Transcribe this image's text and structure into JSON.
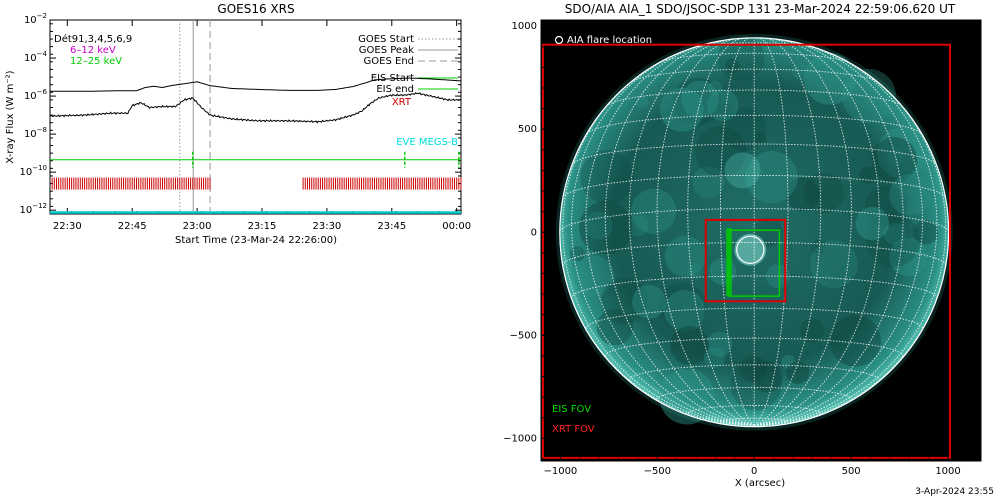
{
  "chart_data": [
    {
      "type": "line",
      "title": "GOES16 XRS",
      "xlabel": "Start Time (23-Mar-24 22:26:00)",
      "ylabel": "X-ray Flux (W m⁻²)",
      "x_tick_labels": [
        "22:30",
        "22:45",
        "23:00",
        "23:15",
        "23:30",
        "23:45",
        "00:00"
      ],
      "x_tick_minutes": [
        4,
        19,
        34,
        49,
        64,
        79,
        94
      ],
      "xlim_minutes": [
        0,
        95
      ],
      "y_tick_exponents": [
        -2,
        -4,
        -6,
        -8,
        -10,
        -12
      ],
      "ylim_log10": [
        -12.2,
        -2
      ],
      "y_scale": "log",
      "legend_top_left": [
        "Dét91,3,4,5,6,9",
        "6–12 keV",
        "12–25 keV"
      ],
      "legend_top_left_colors": [
        "#000000",
        "#cc00cc",
        "#00cc00"
      ],
      "legend_right": [
        {
          "label": "GOES Start",
          "style": "dotted",
          "color": "#999999"
        },
        {
          "label": "GOES Peak",
          "style": "solid",
          "color": "#999999"
        },
        {
          "label": "GOES End",
          "style": "dashed",
          "color": "#999999"
        },
        {
          "label": "EIS Start",
          "style": "solid",
          "color": "#00cc00"
        },
        {
          "label": "EIS end",
          "style": "solid",
          "color": "#00cc00"
        },
        {
          "label": "XRT",
          "style": "text",
          "color": "#cc0000"
        }
      ],
      "eve_label": "EVE MEGS-B",
      "goes_start_minute": 30,
      "goes_peak_minute": 33.1,
      "goes_end_minute": 37,
      "series": [
        {
          "name": "GOES long channel",
          "color": "#000000",
          "points": [
            [
              0,
              -5.75
            ],
            [
              8,
              -5.75
            ],
            [
              16,
              -5.72
            ],
            [
              20,
              -5.72
            ],
            [
              22,
              -5.55
            ],
            [
              24,
              -5.48
            ],
            [
              26,
              -5.55
            ],
            [
              28,
              -5.45
            ],
            [
              31,
              -5.35
            ],
            [
              34,
              -5.25
            ],
            [
              37,
              -5.45
            ],
            [
              42,
              -5.6
            ],
            [
              48,
              -5.65
            ],
            [
              55,
              -5.7
            ],
            [
              62,
              -5.7
            ],
            [
              66,
              -5.65
            ],
            [
              70,
              -5.5
            ],
            [
              73,
              -5.3
            ],
            [
              75,
              -5.15
            ],
            [
              78,
              -5.1
            ],
            [
              83,
              -5.05
            ],
            [
              88,
              -5.1
            ],
            [
              95,
              -5.2
            ]
          ]
        },
        {
          "name": "GOES short channel",
          "color": "#000000",
          "points": [
            [
              0,
              -7.05
            ],
            [
              8,
              -7.0
            ],
            [
              14,
              -6.9
            ],
            [
              18,
              -6.9
            ],
            [
              19,
              -6.5
            ],
            [
              21,
              -6.35
            ],
            [
              23,
              -6.6
            ],
            [
              26,
              -6.55
            ],
            [
              29,
              -6.55
            ],
            [
              31,
              -6.2
            ],
            [
              33,
              -6.1
            ],
            [
              35,
              -6.6
            ],
            [
              37,
              -7.0
            ],
            [
              42,
              -7.2
            ],
            [
              48,
              -7.3
            ],
            [
              55,
              -7.3
            ],
            [
              62,
              -7.35
            ],
            [
              66,
              -7.25
            ],
            [
              70,
              -7.0
            ],
            [
              72,
              -6.8
            ],
            [
              74,
              -6.4
            ],
            [
              76,
              -6.1
            ],
            [
              79,
              -5.95
            ],
            [
              82,
              -5.95
            ],
            [
              85,
              -5.85
            ],
            [
              88,
              -6.0
            ],
            [
              92,
              -6.2
            ],
            [
              95,
              -6.2
            ]
          ]
        }
      ],
      "eis_duration_line_log10": -9.35,
      "eis_markers_minutes": [
        33,
        82,
        94.5
      ],
      "xrt_level_log10": -10.6,
      "xrt_intervals_minutes": [
        [
          0,
          37
        ],
        [
          58,
          95
        ]
      ],
      "baseline_log10": -12.2,
      "baseline_color": "#00cccc"
    },
    {
      "type": "scatter",
      "title": "SDO/AIA AIA_1 SDO/JSOC-SDP 131 23-Mar-2024 22:59:06.620 UT",
      "xlabel": "X (arcsec)",
      "ylabel": "",
      "x_tick_labels": [
        "−1000",
        "−500",
        "0",
        "500",
        "1000"
      ],
      "x_ticks": [
        -1000,
        -500,
        0,
        500,
        1000
      ],
      "y_tick_labels": [
        "1000",
        "500",
        "0",
        "−500",
        "−1000"
      ],
      "y_ticks": [
        1000,
        500,
        0,
        -500,
        -1000
      ],
      "xlim": [
        -1100,
        1170
      ],
      "ylim": [
        -1110,
        1030
      ],
      "solar_radius_arcsec": 1003,
      "flare_location_label": "AIA flare location",
      "flare_location": [
        -20,
        -85
      ],
      "flare_circle_radius": 70,
      "eis_fov_label": "EIS FOV",
      "xrt_fov_label": "XRT FOV",
      "xrt_fov_outer": [
        -1090,
        1010,
        -1095,
        910
      ],
      "xrt_fov_inner": [
        -250,
        160,
        -335,
        60
      ],
      "eis_fov": [
        -130,
        130,
        -310,
        10
      ],
      "eis_fov_slits": [
        -140,
        -130,
        -120
      ],
      "eis_color": "#00cc00",
      "xrt_color": "#dd0000",
      "image_colors": [
        "#0b2a25",
        "#1e6b63",
        "#3fb0a4"
      ],
      "footer": "3-Apr-2024 23:55"
    }
  ]
}
